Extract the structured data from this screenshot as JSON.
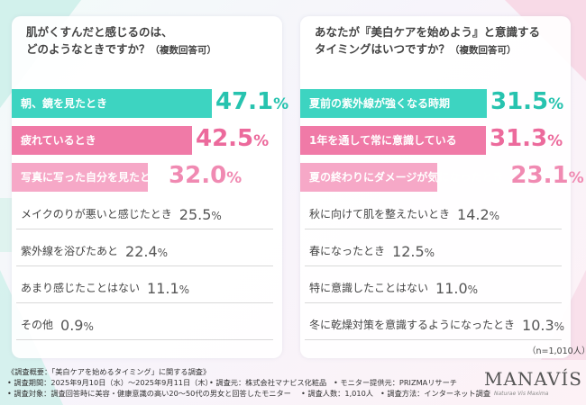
{
  "questions": {
    "left": {
      "line1": "肌がくすんだと感じるのは、",
      "line2": "どのようなときですか？",
      "note": "（複数回答可）"
    },
    "right": {
      "line1": "あなたが『美白ケアを始めよう』と意識する",
      "line2": "タイミングはいつですか？",
      "note": "（複数回答可）"
    }
  },
  "chart_data": [
    {
      "type": "bar",
      "orientation": "horizontal",
      "title": "肌がくすんだと感じるのは、どのようなときですか？（複数回答可）",
      "categories": [
        "朝、鏡を見たとき",
        "疲れているとき",
        "写真に写った自分を見たとき",
        "メイクのりが悪いと感じたとき",
        "紫外線を浴びたあと",
        "あまり感じたことはない",
        "その他"
      ],
      "values": [
        47.1,
        42.5,
        32.0,
        25.5,
        22.4,
        11.1,
        0.9
      ],
      "value_labels": [
        "47.1",
        "42.5",
        "32.0",
        "25.5",
        "22.4",
        "11.1",
        "0.9"
      ],
      "unit": "%",
      "colors": [
        "#3dd4c1",
        "#f07aa7",
        "#f6a8c7"
      ]
    },
    {
      "type": "bar",
      "orientation": "horizontal",
      "title": "あなたが『美白ケアを始めよう』と意識するタイミングはいつですか？（複数回答可）",
      "categories": [
        "夏前の紫外線が強くなる時期",
        "1年を通して常に意識している",
        "夏の終わりにダメージが気になったとき",
        "秋に向けて肌を整えたいとき",
        "春になったとき",
        "特に意識したことはない",
        "冬に乾燥対策を意識するようになったとき"
      ],
      "values": [
        31.5,
        31.3,
        23.1,
        14.2,
        12.5,
        11.0,
        10.3
      ],
      "value_labels": [
        "31.5",
        "31.3",
        "23.1",
        "14.2",
        "12.5",
        "11.0",
        "10.3"
      ],
      "unit": "%",
      "colors": [
        "#3dd4c1",
        "#f07aa7",
        "#f6a8c7"
      ]
    }
  ],
  "sample_note": "（n=1,010人）",
  "footer": {
    "line1": "《調査概要：「美白ケアを始めるタイミング」に関する調査》",
    "line2a": "• 調査期間：2025年9月10日（水）～2025年9月11日（木）",
    "line2b": "• 調査元：株式会社マナビス化粧品",
    "line2c": "• モニター提供元：PRIZMAリサーチ",
    "line3a": "• 調査対象：調査回答時に美容・健康意識の高い20～50代の男女と回答したモニター",
    "line3b": "• 調査人数：1,010人",
    "line3c": "• 調査方法：インターネット調査"
  },
  "brand": {
    "name": "MANAVÍS",
    "tagline": "Naturae Vis Maxima"
  }
}
